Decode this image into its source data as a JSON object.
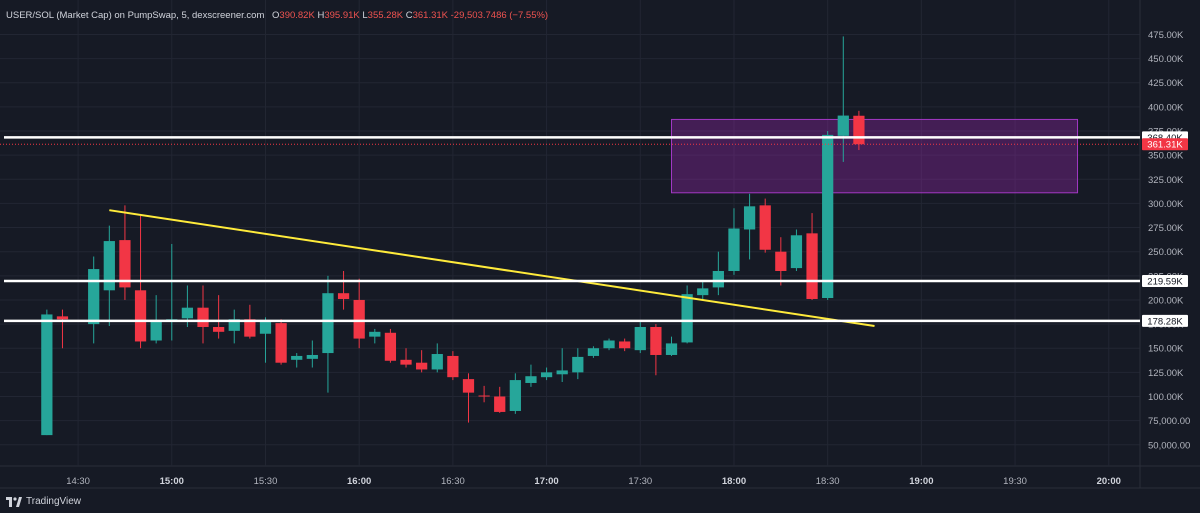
{
  "header": {
    "symbol": "USER/SOL (Market Cap) on PumpSwap, 5, dexscreener.com",
    "o_label": "O",
    "o_value": "390.82K",
    "h_label": "H",
    "h_value": "395.91K",
    "l_label": "L",
    "l_value": "355.28K",
    "c_label": "C",
    "c_value": "361.31K",
    "change": "-29,503.7486 (−7.55%)"
  },
  "footer": {
    "brand": "TradingView"
  },
  "colors": {
    "background": "#161a25",
    "up": "#26a69a",
    "down": "#f23645",
    "grid": "#222633",
    "text": "#b2b5be",
    "hline": "#ffffff",
    "trendline": "#ffeb3b",
    "zone_fill": "#9c27b0",
    "zone_border": "#a238c4"
  },
  "chart_data": {
    "type": "candlestick",
    "title": "USER/SOL (Market Cap) on PumpSwap, 5, dexscreener.com",
    "interval_minutes": 5,
    "xlim": [
      "14:05",
      "20:10"
    ],
    "ylim": [
      28000,
      490000
    ],
    "y_ticks": [
      50000,
      75000,
      100000,
      125000,
      150000,
      175000,
      200000,
      225000,
      250000,
      275000,
      300000,
      325000,
      350000,
      375000,
      400000,
      425000,
      450000,
      475000
    ],
    "y_tick_labels": [
      "50,000.00",
      "75,000.00",
      "100.00K",
      "125.00K",
      "150.00K",
      "175.00K",
      "200.00K",
      "225.00K",
      "250.00K",
      "275.00K",
      "300.00K",
      "325.00K",
      "350.00K",
      "375.00K",
      "400.00K",
      "425.00K",
      "450.00K",
      "475.00K"
    ],
    "x_ticks": [
      "14:30",
      "15:00",
      "15:30",
      "16:00",
      "16:30",
      "17:00",
      "17:30",
      "18:00",
      "18:30",
      "19:00",
      "19:30",
      "20:00"
    ],
    "grid": true,
    "candles": [
      {
        "t": "14:20",
        "o": 60000,
        "h": 190000,
        "l": 60000,
        "c": 185000
      },
      {
        "t": "14:25",
        "o": 183000,
        "h": 190000,
        "l": 150000,
        "c": 180000
      },
      {
        "t": "14:35",
        "o": 175000,
        "h": 245000,
        "l": 155000,
        "c": 232000
      },
      {
        "t": "14:40",
        "o": 210000,
        "h": 277000,
        "l": 173000,
        "c": 261000
      },
      {
        "t": "14:45",
        "o": 262000,
        "h": 298000,
        "l": 200000,
        "c": 213000
      },
      {
        "t": "14:50",
        "o": 210000,
        "h": 287000,
        "l": 150000,
        "c": 157000
      },
      {
        "t": "14:55",
        "o": 158000,
        "h": 205000,
        "l": 155000,
        "c": 179000
      },
      {
        "t": "15:00",
        "o": 178000,
        "h": 258000,
        "l": 158000,
        "c": 180000
      },
      {
        "t": "15:05",
        "o": 181000,
        "h": 215000,
        "l": 172000,
        "c": 192000
      },
      {
        "t": "15:10",
        "o": 192000,
        "h": 215000,
        "l": 155000,
        "c": 172000
      },
      {
        "t": "15:15",
        "o": 172000,
        "h": 205000,
        "l": 160000,
        "c": 167000
      },
      {
        "t": "15:20",
        "o": 168000,
        "h": 190000,
        "l": 155000,
        "c": 180000
      },
      {
        "t": "15:25",
        "o": 180000,
        "h": 195000,
        "l": 160000,
        "c": 162000
      },
      {
        "t": "15:30",
        "o": 165000,
        "h": 182000,
        "l": 135000,
        "c": 178000
      },
      {
        "t": "15:35",
        "o": 176000,
        "h": 180000,
        "l": 133000,
        "c": 135000
      },
      {
        "t": "15:40",
        "o": 138000,
        "h": 145000,
        "l": 130000,
        "c": 142000
      },
      {
        "t": "15:45",
        "o": 139000,
        "h": 158000,
        "l": 130000,
        "c": 143000
      },
      {
        "t": "15:50",
        "o": 145000,
        "h": 225000,
        "l": 104000,
        "c": 207000
      },
      {
        "t": "15:55",
        "o": 207000,
        "h": 230000,
        "l": 190000,
        "c": 201000
      },
      {
        "t": "16:00",
        "o": 200000,
        "h": 222000,
        "l": 150000,
        "c": 160000
      },
      {
        "t": "16:05",
        "o": 162000,
        "h": 170000,
        "l": 155000,
        "c": 167000
      },
      {
        "t": "16:10",
        "o": 166000,
        "h": 170000,
        "l": 135000,
        "c": 137000
      },
      {
        "t": "16:15",
        "o": 138000,
        "h": 150000,
        "l": 130000,
        "c": 133000
      },
      {
        "t": "16:20",
        "o": 135000,
        "h": 148000,
        "l": 125000,
        "c": 128000
      },
      {
        "t": "16:25",
        "o": 128000,
        "h": 155000,
        "l": 125000,
        "c": 144000
      },
      {
        "t": "16:30",
        "o": 142000,
        "h": 147000,
        "l": 117000,
        "c": 120000
      },
      {
        "t": "16:35",
        "o": 118000,
        "h": 124000,
        "l": 73000,
        "c": 104000
      },
      {
        "t": "16:40",
        "o": 101000,
        "h": 111000,
        "l": 94000,
        "c": 100000
      },
      {
        "t": "16:45",
        "o": 100000,
        "h": 110000,
        "l": 83000,
        "c": 84000
      },
      {
        "t": "16:50",
        "o": 85000,
        "h": 124000,
        "l": 82000,
        "c": 117000
      },
      {
        "t": "16:55",
        "o": 114000,
        "h": 133000,
        "l": 110000,
        "c": 121000
      },
      {
        "t": "17:00",
        "o": 120000,
        "h": 130000,
        "l": 117000,
        "c": 125000
      },
      {
        "t": "17:05",
        "o": 123000,
        "h": 150000,
        "l": 115000,
        "c": 127000
      },
      {
        "t": "17:10",
        "o": 125000,
        "h": 150000,
        "l": 118000,
        "c": 141000
      },
      {
        "t": "17:15",
        "o": 142000,
        "h": 152000,
        "l": 140000,
        "c": 150000
      },
      {
        "t": "17:20",
        "o": 150000,
        "h": 160000,
        "l": 148000,
        "c": 158000
      },
      {
        "t": "17:25",
        "o": 157000,
        "h": 160000,
        "l": 147000,
        "c": 150000
      },
      {
        "t": "17:30",
        "o": 148000,
        "h": 177000,
        "l": 145000,
        "c": 172000
      },
      {
        "t": "17:35",
        "o": 172000,
        "h": 175000,
        "l": 122000,
        "c": 143000
      },
      {
        "t": "17:40",
        "o": 143000,
        "h": 162000,
        "l": 142000,
        "c": 155000
      },
      {
        "t": "17:45",
        "o": 156000,
        "h": 215000,
        "l": 155000,
        "c": 206000
      },
      {
        "t": "17:50",
        "o": 205000,
        "h": 220000,
        "l": 200000,
        "c": 212000
      },
      {
        "t": "17:55",
        "o": 213000,
        "h": 250000,
        "l": 205000,
        "c": 230000
      },
      {
        "t": "18:00",
        "o": 230000,
        "h": 295000,
        "l": 226000,
        "c": 274000
      },
      {
        "t": "18:05",
        "o": 273000,
        "h": 310000,
        "l": 242000,
        "c": 297000
      },
      {
        "t": "18:10",
        "o": 298000,
        "h": 305000,
        "l": 249000,
        "c": 252000
      },
      {
        "t": "18:15",
        "o": 250000,
        "h": 265000,
        "l": 215000,
        "c": 230000
      },
      {
        "t": "18:20",
        "o": 233000,
        "h": 273000,
        "l": 230000,
        "c": 267000
      },
      {
        "t": "18:25",
        "o": 269000,
        "h": 290000,
        "l": 200000,
        "c": 201000
      },
      {
        "t": "18:30",
        "o": 202000,
        "h": 375000,
        "l": 200000,
        "c": 371000
      },
      {
        "t": "18:35",
        "o": 370000,
        "h": 473000,
        "l": 343000,
        "c": 391000
      },
      {
        "t": "18:40",
        "o": 390820,
        "h": 395910,
        "l": 355280,
        "c": 361310
      }
    ],
    "horizontal_levels": [
      {
        "value": 368400,
        "label": "368.40K"
      },
      {
        "value": 219590,
        "label": "219.59K"
      },
      {
        "value": 178280,
        "label": "178.28K"
      }
    ],
    "last_price": {
      "value": 361310,
      "label": "361.31K"
    },
    "trendline": {
      "from": {
        "t": "14:40",
        "v": 293000
      },
      "to": {
        "t": "18:45",
        "v": 173000
      }
    },
    "zone": {
      "t_from": "17:40",
      "t_to": "19:50",
      "v_from": 311000,
      "v_to": 387000
    }
  }
}
